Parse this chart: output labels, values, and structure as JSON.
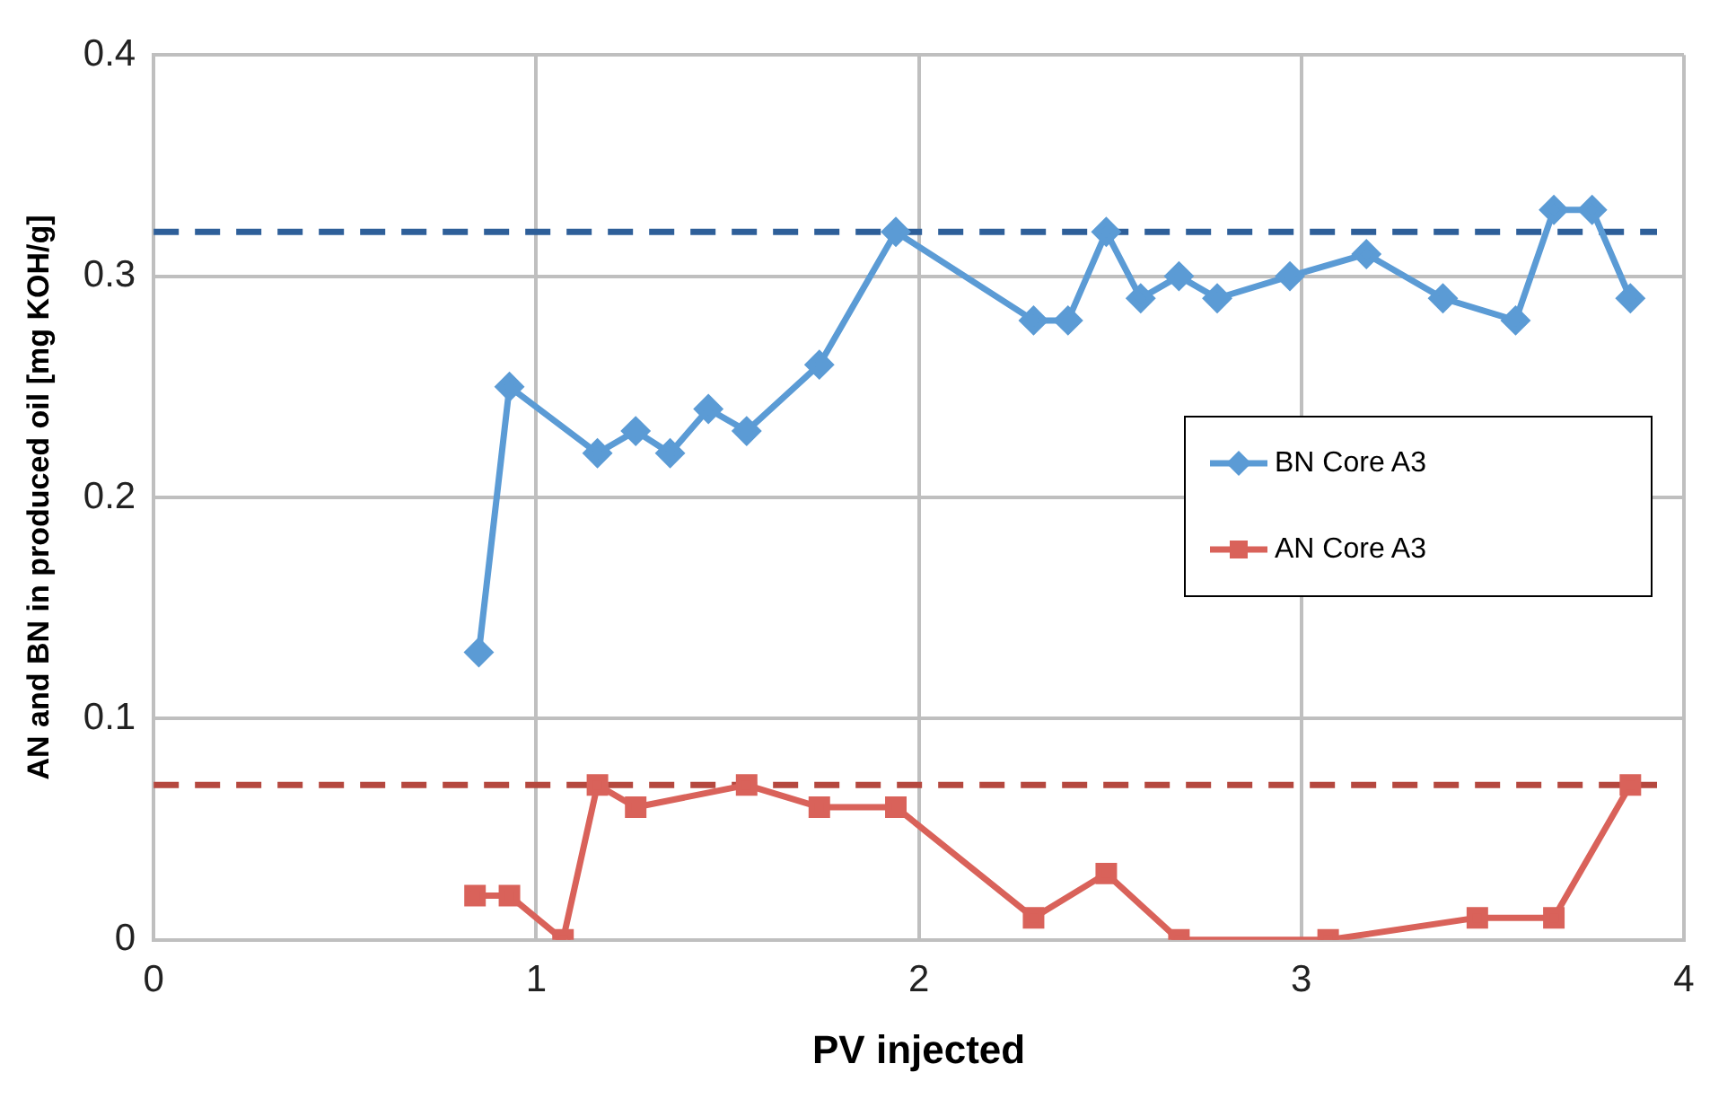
{
  "chart_data": {
    "type": "line",
    "xlabel": "PV injected",
    "ylabel": "AN and BN in produced oil [mg KOH/g]",
    "xlim": [
      0,
      4
    ],
    "xticks": [
      0,
      1,
      2,
      3,
      4
    ],
    "ylim": [
      0,
      0.4
    ],
    "yticks": [
      0,
      0.1,
      0.2,
      0.3,
      0.4
    ],
    "grid": true,
    "legend": "right",
    "series": [
      {
        "name": "BN Core A3",
        "color": "#5b9bd5",
        "marker": "diamond",
        "x": [
          0.85,
          0.93,
          1.16,
          1.26,
          1.35,
          1.45,
          1.55,
          1.74,
          1.94,
          2.3,
          2.39,
          2.49,
          2.58,
          2.68,
          2.78,
          2.97,
          3.17,
          3.37,
          3.56,
          3.66,
          3.76,
          3.86
        ],
        "values": [
          0.13,
          0.25,
          0.22,
          0.23,
          0.22,
          0.24,
          0.23,
          0.26,
          0.32,
          0.28,
          0.28,
          0.32,
          0.29,
          0.3,
          0.29,
          0.3,
          0.31,
          0.29,
          0.28,
          0.33,
          0.33,
          0.29
        ]
      },
      {
        "name": "AN Core A3",
        "color": "#d9625a",
        "marker": "square",
        "x": [
          0.84,
          0.93,
          1.07,
          1.16,
          1.26,
          1.55,
          1.74,
          1.94,
          2.3,
          2.49,
          2.68,
          3.07,
          3.46,
          3.66,
          3.86
        ],
        "values": [
          0.02,
          0.02,
          0,
          0.07,
          0.06,
          0.07,
          0.06,
          0.06,
          0.01,
          0.03,
          0,
          0,
          0.01,
          0.01,
          0.07
        ]
      }
    ],
    "ref_lines": [
      {
        "axis": "y",
        "value": 0.32,
        "color": "#2e5f99",
        "line_style": "dashed"
      },
      {
        "axis": "y",
        "value": 0.07,
        "color": "#b5483f",
        "line_style": "dashed"
      }
    ]
  }
}
